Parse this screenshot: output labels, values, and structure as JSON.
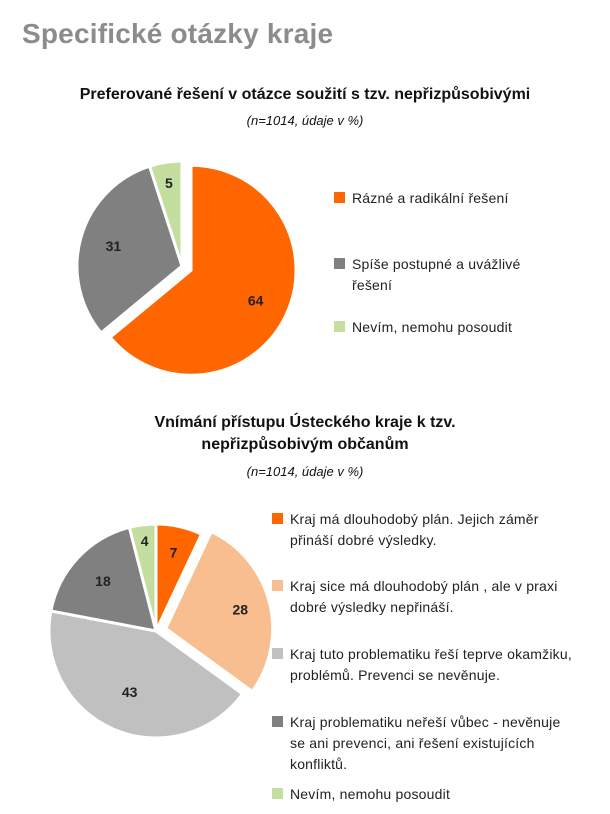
{
  "page": {
    "title": "Specifické otázky kraje"
  },
  "chart_data": [
    {
      "type": "pie",
      "title": "Preferované řešení v otázce soužití s tzv. nepřizpůsobivými",
      "subtitle": "(n=1014, údaje v %)",
      "labels": [
        "Rázné a radikální řešení",
        "Spíše postupné a uvážlivé řešení",
        "Nevím, nemohu posoudit"
      ],
      "values": [
        64,
        31,
        5
      ],
      "colors": [
        "#ff6600",
        "#808080",
        "#c4dea0"
      ],
      "exploded": [
        true,
        false,
        false
      ],
      "legend_position": "right"
    },
    {
      "type": "pie",
      "title": "Vnímání přístupu Ústeckého kraje k tzv. nepřizpůsobivým občanům",
      "title_lines": [
        "Vnímání přístupu Ústeckého kraje k tzv.",
        "nepřizpůsobivým občanům"
      ],
      "subtitle": "(n=1014, údaje v %)",
      "labels": [
        "Kraj má dlouhodobý plán. Jejich záměr přináší dobré výsledky.",
        "Kraj sice má dlouhodobý plán , ale v praxi dobré výsledky nepřináší.",
        "Kraj tuto problematiku řeší teprve okamžiku, problémů. Prevenci se nevěnuje.",
        "Kraj problematiku neřeší vůbec - nevěnuje se ani prevenci, ani řešení existujících konfliktů.",
        "Nevím, nemohu posoudit"
      ],
      "values": [
        7,
        28,
        43,
        18,
        4
      ],
      "colors": [
        "#ff6600",
        "#f9be8f",
        "#c0c0c0",
        "#808080",
        "#c4dea0"
      ],
      "exploded": [
        false,
        true,
        false,
        false,
        false
      ],
      "legend_position": "right"
    }
  ]
}
